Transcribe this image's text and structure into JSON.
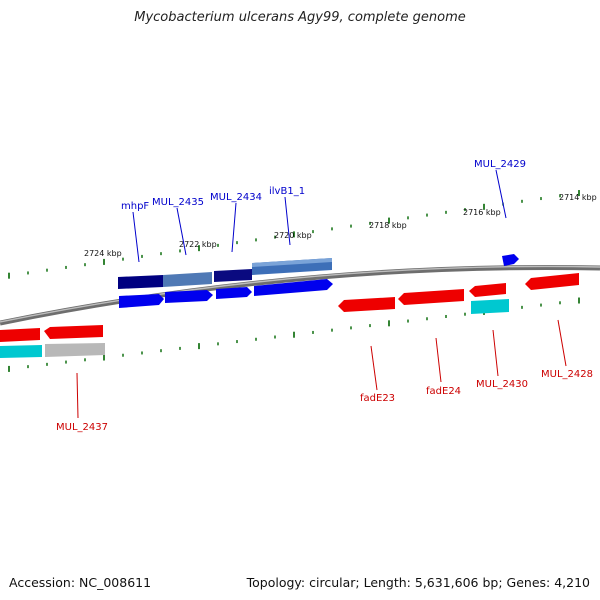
{
  "title": "Mycobacterium ulcerans Agy99, complete genome",
  "footer": {
    "accession": "Accession: NC_008611",
    "summary": "Topology: circular; Length: 5,631,606 bp; Genes: 4,210"
  },
  "colors": {
    "forward_gene": "#0000ee",
    "forward_cds_dark": "#000080",
    "forward_cds_light": "#4f79b5",
    "reverse_gene": "#ee0000",
    "reverse_cds_cyan": "#00c8d0",
    "reverse_cds_gray": "#b8b8b8",
    "forward_label": "#0000cc",
    "reverse_label": "#cc0000",
    "tick": "#006600",
    "backbone": "#777777"
  },
  "ticks": {
    "forward_labels": [
      "2724 kbp",
      "2722 kbp",
      "2720 kbp",
      "2718 kbp",
      "2716 kbp",
      "2714 kbp"
    ]
  },
  "genes": {
    "forward_labels": [
      "mhpF",
      "MUL_2435",
      "MUL_2434",
      "ilvB1_1",
      "MUL_2429"
    ],
    "reverse_labels": [
      "MUL_2437",
      "fadE23",
      "fadE24",
      "MUL_2430",
      "MUL_2428"
    ]
  }
}
